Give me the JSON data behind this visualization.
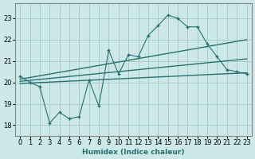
{
  "xlabel": "Humidex (Indice chaleur)",
  "background_color": "#cce8e8",
  "grid_color": "#aacccc",
  "line_color": "#2a7070",
  "x_ticks": [
    0,
    1,
    2,
    3,
    4,
    5,
    6,
    7,
    8,
    9,
    10,
    11,
    12,
    13,
    14,
    15,
    16,
    17,
    18,
    19,
    20,
    21,
    22,
    23
  ],
  "y_ticks": [
    18,
    19,
    20,
    21,
    22,
    23
  ],
  "xlim": [
    -0.5,
    23.5
  ],
  "ylim": [
    17.5,
    23.7
  ],
  "jagged_x": [
    0,
    1,
    2,
    3,
    4,
    5,
    6,
    7,
    8,
    9,
    10,
    11,
    12,
    13,
    14,
    15,
    16,
    17,
    18,
    19,
    20,
    21,
    22,
    23
  ],
  "jagged_y": [
    20.3,
    20.0,
    19.8,
    18.1,
    18.6,
    18.3,
    18.4,
    20.1,
    18.9,
    21.5,
    20.4,
    21.3,
    21.2,
    22.2,
    22.65,
    23.15,
    23.0,
    22.6,
    22.6,
    21.8,
    21.2,
    20.6,
    20.5,
    20.4
  ],
  "trend1_x": [
    0,
    23
  ],
  "trend1_y": [
    20.15,
    22.0
  ],
  "trend2_x": [
    0,
    23
  ],
  "trend2_y": [
    20.05,
    21.1
  ],
  "trend3_x": [
    0,
    23
  ],
  "trend3_y": [
    19.95,
    20.45
  ],
  "xlabel_fontsize": 6.5,
  "tick_fontsize": 6
}
